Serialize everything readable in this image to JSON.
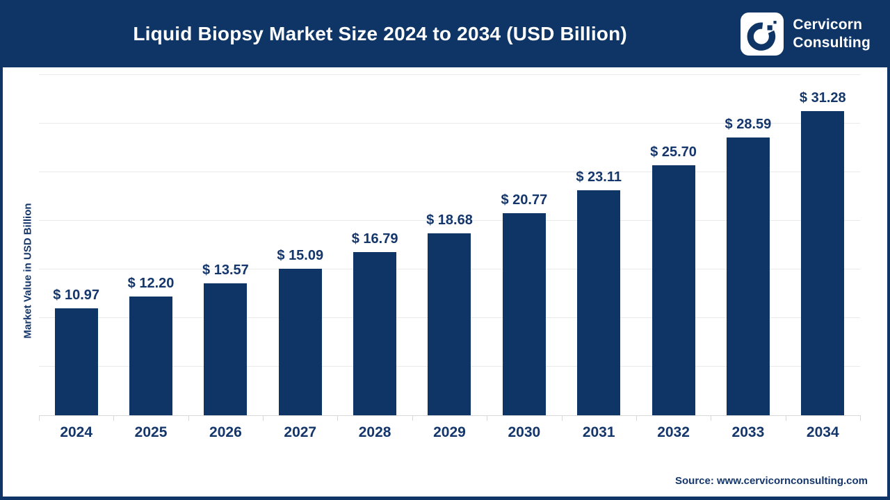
{
  "header": {
    "title": "Liquid Biopsy Market Size 2024 to 2034 (USD Billion)",
    "brand": {
      "line1": "Cervicorn",
      "line2": "Consulting",
      "logo_icon": "cervicorn-c-mark"
    }
  },
  "chart_data": {
    "type": "bar",
    "title": "Liquid Biopsy Market Size 2024 to 2034 (USD Billion)",
    "xlabel": "",
    "ylabel": "Market Value in USD Billion",
    "categories": [
      "2024",
      "2025",
      "2026",
      "2027",
      "2028",
      "2029",
      "2030",
      "2031",
      "2032",
      "2033",
      "2034"
    ],
    "values": [
      10.97,
      12.2,
      13.57,
      15.09,
      16.79,
      18.68,
      20.77,
      23.11,
      25.7,
      28.59,
      31.28
    ],
    "value_labels": [
      "$ 10.97",
      "$ 12.20",
      "$ 13.57",
      "$ 15.09",
      "$ 16.79",
      "$ 18.68",
      "$ 20.77",
      "$ 23.11",
      "$ 25.70",
      "$ 28.59",
      "$ 31.28"
    ],
    "ylim": [
      0,
      35
    ],
    "gridline_step": 5,
    "grid": true,
    "legend_position": "none",
    "y_tick_labels_shown": false
  },
  "footer": {
    "source": "Source: www.cervicornconsulting.com"
  },
  "colors": {
    "navy": "#0e3566",
    "text_navy": "#14366b",
    "grid": "#e9e9e9",
    "axis": "#d8d8d8",
    "background": "#ffffff",
    "logo_bg": "#ffffff"
  }
}
